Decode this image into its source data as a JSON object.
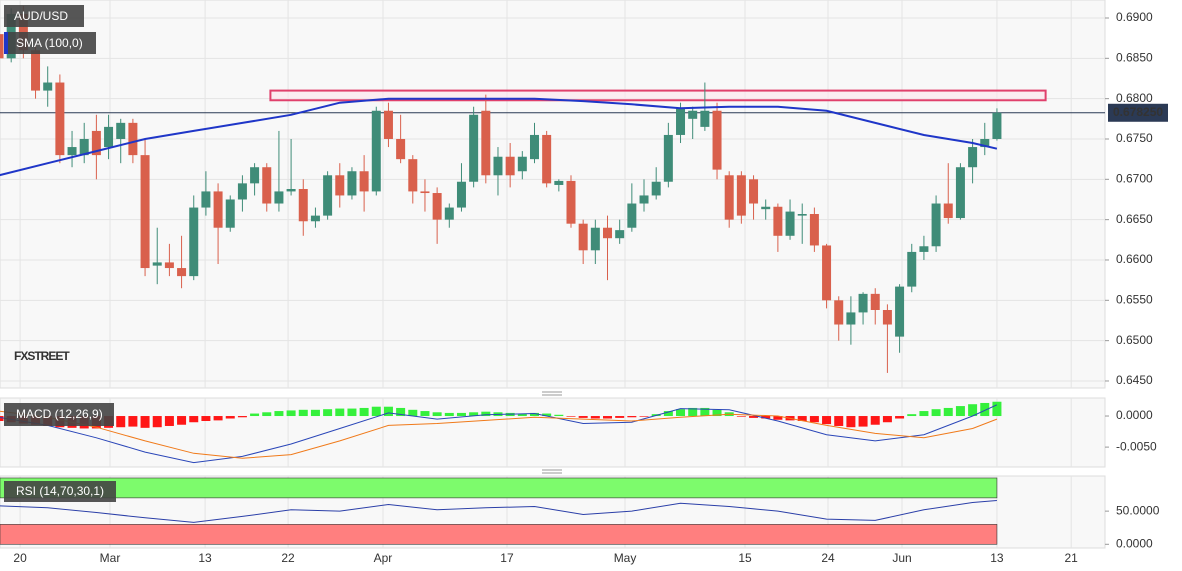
{
  "chart_data": [
    {
      "type": "candlestick",
      "name": "AUD/USD",
      "watermark": "FXSTREET",
      "color_up": "#3f8c78",
      "color_down": "#d9604c",
      "xlim": [
        0.08,
        90.88
      ],
      "ylim": [
        0.64413,
        0.69223
      ],
      "yticks": [
        {
          "value": 0.69,
          "label": "0.6900"
        },
        {
          "value": 0.685,
          "label": "0.6850"
        },
        {
          "value": 0.68,
          "label": "0.6800"
        },
        {
          "value": 0.675,
          "label": "0.6750"
        },
        {
          "value": 0.67,
          "label": "0.6700"
        },
        {
          "value": 0.665,
          "label": "0.6650"
        },
        {
          "value": 0.66,
          "label": "0.6600"
        },
        {
          "value": 0.655,
          "label": "0.6550"
        },
        {
          "value": 0.65,
          "label": "0.6500"
        },
        {
          "value": 0.645,
          "label": "0.6450"
        }
      ],
      "xticks": [
        {
          "value": 1.73,
          "label": "20"
        },
        {
          "value": 9.12,
          "label": "Mar"
        },
        {
          "value": 16.93,
          "label": "13"
        },
        {
          "value": 23.75,
          "label": "22"
        },
        {
          "value": 31.55,
          "label": "Apr"
        },
        {
          "value": 41.74,
          "label": "17"
        },
        {
          "value": 51.44,
          "label": "May"
        },
        {
          "value": 61.3,
          "label": "15"
        },
        {
          "value": 68.12,
          "label": "24"
        },
        {
          "value": 74.2,
          "label": "Jun"
        },
        {
          "value": 82.0,
          "label": "13"
        },
        {
          "value": 88.1,
          "label": "21"
        }
      ],
      "grid": true,
      "ohlc": [
        [
          0.688,
          0.6905,
          0.684,
          0.685
        ],
        [
          0.685,
          0.6912,
          0.6845,
          0.6905
        ],
        [
          0.6905,
          0.6915,
          0.685,
          0.686
        ],
        [
          0.686,
          0.687,
          0.68,
          0.681
        ],
        [
          0.681,
          0.684,
          0.679,
          0.682
        ],
        [
          0.682,
          0.683,
          0.672,
          0.673
        ],
        [
          0.673,
          0.676,
          0.6715,
          0.674
        ],
        [
          0.673,
          0.677,
          0.672,
          0.675
        ],
        [
          0.676,
          0.678,
          0.67,
          0.673
        ],
        [
          0.674,
          0.678,
          0.6725,
          0.6765
        ],
        [
          0.675,
          0.6775,
          0.672,
          0.677
        ],
        [
          0.677,
          0.6775,
          0.672,
          0.673
        ],
        [
          0.673,
          0.675,
          0.658,
          0.659
        ],
        [
          0.6593,
          0.664,
          0.657,
          0.6597
        ],
        [
          0.6597,
          0.662,
          0.658,
          0.659
        ],
        [
          0.659,
          0.663,
          0.6565,
          0.658
        ],
        [
          0.658,
          0.668,
          0.6575,
          0.6665
        ],
        [
          0.6665,
          0.671,
          0.6655,
          0.6685
        ],
        [
          0.6685,
          0.6695,
          0.6595,
          0.664
        ],
        [
          0.664,
          0.668,
          0.6635,
          0.6675
        ],
        [
          0.6675,
          0.6705,
          0.666,
          0.6695
        ],
        [
          0.6695,
          0.672,
          0.668,
          0.6715
        ],
        [
          0.6715,
          0.672,
          0.666,
          0.667
        ],
        [
          0.667,
          0.676,
          0.666,
          0.6685
        ],
        [
          0.6685,
          0.675,
          0.668,
          0.6688
        ],
        [
          0.6688,
          0.67,
          0.663,
          0.6648
        ],
        [
          0.6648,
          0.6665,
          0.664,
          0.6655
        ],
        [
          0.6655,
          0.671,
          0.665,
          0.6705
        ],
        [
          0.6705,
          0.672,
          0.6665,
          0.668
        ],
        [
          0.668,
          0.6715,
          0.6675,
          0.671
        ],
        [
          0.671,
          0.673,
          0.666,
          0.6685
        ],
        [
          0.6685,
          0.679,
          0.668,
          0.6785
        ],
        [
          0.6785,
          0.6795,
          0.674,
          0.675
        ],
        [
          0.675,
          0.678,
          0.672,
          0.6725
        ],
        [
          0.6725,
          0.673,
          0.667,
          0.6685
        ],
        [
          0.6685,
          0.67,
          0.666,
          0.6683
        ],
        [
          0.6683,
          0.669,
          0.662,
          0.665
        ],
        [
          0.665,
          0.667,
          0.664,
          0.6665
        ],
        [
          0.6665,
          0.672,
          0.666,
          0.6697
        ],
        [
          0.6697,
          0.679,
          0.669,
          0.678
        ],
        [
          0.6785,
          0.6805,
          0.6695,
          0.6705
        ],
        [
          0.6705,
          0.674,
          0.668,
          0.6728
        ],
        [
          0.6728,
          0.6745,
          0.669,
          0.6705
        ],
        [
          0.671,
          0.6735,
          0.67,
          0.6728
        ],
        [
          0.6725,
          0.677,
          0.672,
          0.6755
        ],
        [
          0.6755,
          0.676,
          0.669,
          0.6695
        ],
        [
          0.6693,
          0.67,
          0.6685,
          0.6698
        ],
        [
          0.6698,
          0.6705,
          0.664,
          0.6645
        ],
        [
          0.6645,
          0.665,
          0.6595,
          0.6612
        ],
        [
          0.6612,
          0.665,
          0.6595,
          0.664
        ],
        [
          0.664,
          0.6655,
          0.6575,
          0.6627
        ],
        [
          0.6627,
          0.665,
          0.662,
          0.6637
        ],
        [
          0.664,
          0.6695,
          0.6635,
          0.667
        ],
        [
          0.667,
          0.67,
          0.666,
          0.668
        ],
        [
          0.668,
          0.6715,
          0.6675,
          0.6697
        ],
        [
          0.6697,
          0.677,
          0.669,
          0.6755
        ],
        [
          0.6755,
          0.6795,
          0.6745,
          0.6788
        ],
        [
          0.6775,
          0.679,
          0.675,
          0.6785
        ],
        [
          0.6765,
          0.682,
          0.676,
          0.6785
        ],
        [
          0.6785,
          0.6795,
          0.67,
          0.6712
        ],
        [
          0.6705,
          0.671,
          0.664,
          0.665
        ],
        [
          0.6705,
          0.671,
          0.6645,
          0.6655
        ],
        [
          0.67,
          0.6705,
          0.665,
          0.667
        ],
        [
          0.6663,
          0.6675,
          0.665,
          0.6666
        ],
        [
          0.6666,
          0.667,
          0.661,
          0.663
        ],
        [
          0.663,
          0.6675,
          0.6625,
          0.666
        ],
        [
          0.6655,
          0.667,
          0.662,
          0.6657
        ],
        [
          0.6657,
          0.6665,
          0.661,
          0.6618
        ],
        [
          0.6618,
          0.662,
          0.654,
          0.655
        ],
        [
          0.655,
          0.6555,
          0.65,
          0.652
        ],
        [
          0.652,
          0.6555,
          0.6495,
          0.6535
        ],
        [
          0.6535,
          0.656,
          0.652,
          0.6558
        ],
        [
          0.6558,
          0.6565,
          0.652,
          0.6538
        ],
        [
          0.6538,
          0.6545,
          0.646,
          0.652
        ],
        [
          0.6505,
          0.657,
          0.6485,
          0.6567
        ],
        [
          0.6567,
          0.662,
          0.656,
          0.661
        ],
        [
          0.661,
          0.663,
          0.66,
          0.6617
        ],
        [
          0.6617,
          0.668,
          0.661,
          0.667
        ],
        [
          0.667,
          0.672,
          0.6645,
          0.6652
        ],
        [
          0.6652,
          0.672,
          0.665,
          0.6715
        ],
        [
          0.6715,
          0.675,
          0.6695,
          0.674
        ],
        [
          0.674,
          0.677,
          0.673,
          0.675
        ],
        [
          0.675,
          0.6788,
          0.6748,
          0.67825
        ]
      ],
      "sma": {
        "name": "SMA (100,0)",
        "color": "#1f36c8",
        "x": [
          0,
          4,
          8,
          12,
          16,
          20,
          24,
          28,
          32,
          36,
          40,
          44,
          48,
          52,
          56,
          60,
          64,
          68,
          72,
          76,
          80,
          82
        ],
        "values": [
          0.6705,
          0.672,
          0.6735,
          0.675,
          0.676,
          0.677,
          0.678,
          0.6795,
          0.68,
          0.68,
          0.68,
          0.68,
          0.6797,
          0.6793,
          0.6788,
          0.679,
          0.679,
          0.6785,
          0.677,
          0.6755,
          0.6745,
          0.6738
        ]
      },
      "resistance_zone": [
        0.6798,
        0.681
      ],
      "last_price": {
        "value": 0.67825,
        "label": "0.678250"
      }
    },
    {
      "type": "macd",
      "name": "MACD (12,26,9)",
      "ylim": [
        -0.0082,
        0.0029
      ],
      "yticks": [
        {
          "value": 0,
          "label": "0.0000"
        },
        {
          "value": -0.005,
          "label": "-0.0050"
        }
      ],
      "histogram": [
        -0.0008,
        -0.001,
        -0.0012,
        -0.0014,
        -0.0016,
        -0.0018,
        -0.0019,
        -0.002,
        -0.002,
        -0.0019,
        -0.0018,
        -0.0017,
        -0.0019,
        -0.0018,
        -0.0016,
        -0.0014,
        -0.001,
        -0.0008,
        -0.0007,
        -0.0004,
        -0.0002,
        0.0004,
        0.0006,
        0.0008,
        0.0009,
        0.001,
        0.001,
        0.0011,
        0.0012,
        0.0012,
        0.0013,
        0.0015,
        0.0015,
        0.0013,
        0.001,
        0.0008,
        0.0006,
        0.0005,
        0.0005,
        0.0006,
        0.0007,
        0.0006,
        0.0005,
        0.0004,
        0.0005,
        0.0004,
        0.0002,
        -0.0001,
        -0.0003,
        -0.0004,
        -0.0004,
        -0.0003,
        -0.0002,
        -0.0001,
        0.0003,
        0.0008,
        0.0011,
        0.0013,
        0.0013,
        0.001,
        0.0006,
        -0.0001,
        -0.0003,
        -0.0004,
        -0.0006,
        -0.0007,
        -0.0008,
        -0.001,
        -0.0013,
        -0.0016,
        -0.0018,
        -0.0017,
        -0.0014,
        -0.001,
        -0.0004,
        0.0003,
        0.0008,
        0.0011,
        0.0013,
        0.0016,
        0.0019,
        0.0021,
        0.0023
      ],
      "color_up": "#35f03c",
      "color_down": "#ff1616",
      "x": [
        0,
        4,
        8,
        12,
        16,
        20,
        24,
        28,
        32,
        36,
        40,
        44,
        48,
        52,
        56,
        60,
        64,
        68,
        72,
        76,
        80,
        82
      ],
      "series": [
        {
          "color": "#2a46b8",
          "values": [
            -0.0002,
            -0.0015,
            -0.0035,
            -0.0058,
            -0.0075,
            -0.0065,
            -0.0045,
            -0.002,
            0.0005,
            -0.0005,
            0.0002,
            0.0004,
            -0.0012,
            -0.001,
            0.0012,
            0.001,
            -0.0008,
            -0.003,
            -0.004,
            -0.003,
            0.0,
            0.0018
          ]
        },
        {
          "color": "#f07a1a",
          "values": [
            0.0008,
            -0.0002,
            -0.0018,
            -0.004,
            -0.006,
            -0.0068,
            -0.0062,
            -0.004,
            -0.0015,
            -0.0012,
            -0.0007,
            -0.0002,
            -0.0005,
            -0.0008,
            -0.0002,
            0.0003,
            0.0,
            -0.0015,
            -0.0028,
            -0.0035,
            -0.002,
            -0.0005
          ]
        }
      ]
    },
    {
      "type": "rsi",
      "name": "RSI (14,70,30,1)",
      "ylim": [
        -5.6,
        103
      ],
      "yticks": [
        {
          "value": 50,
          "label": "50.0000"
        },
        {
          "value": 0,
          "label": "0.0000"
        }
      ],
      "bands": [
        {
          "range": [
            70,
            100
          ],
          "color": "#7dfb6c"
        },
        {
          "range": [
            0,
            30
          ],
          "color": "#ff7f7f"
        }
      ],
      "x": [
        0,
        4,
        8,
        12,
        16,
        20,
        24,
        28,
        32,
        36,
        40,
        44,
        48,
        52,
        56,
        60,
        64,
        68,
        72,
        76,
        80,
        82
      ],
      "color": "#2b3fa8",
      "values": [
        58,
        55,
        48,
        40,
        33,
        42,
        52,
        50,
        60,
        52,
        55,
        57,
        45,
        50,
        62,
        57,
        50,
        38,
        36,
        52,
        63,
        66
      ]
    }
  ]
}
